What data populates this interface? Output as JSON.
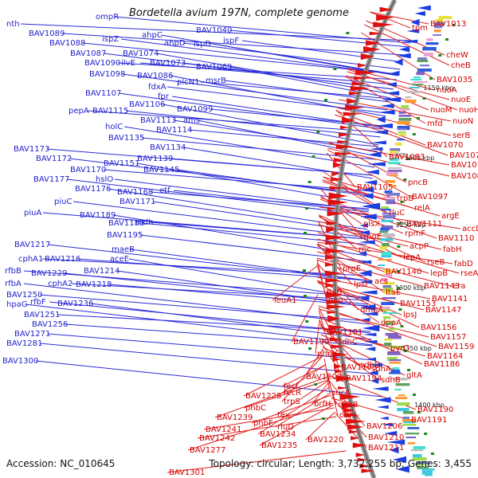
{
  "title": "Bordetella avium 197N, complete genome",
  "footer": {
    "accession": "Accession: NC_010645",
    "summary": "Topology: circular; Length: 3,732,255 bp; Genes: 3,455"
  },
  "kbp_marks": [
    "1150 kbp",
    "1200 kbp",
    "1250 kbp",
    "1300 kbp",
    "1350 kbp",
    "1400 kbp"
  ],
  "left_labels": [
    "nth",
    "BAV1089",
    "ompR",
    "BAV1088",
    "ispZ",
    "ahpC",
    "BAV1040",
    "ispF",
    "ahpD",
    "ispD",
    "BAV1087",
    "BAV1074",
    "BAV1090",
    "ilvE",
    "BAV1073",
    "BAV1069",
    "BAV1098",
    "BAV1086",
    "plcN1",
    "msrB",
    "fdxA",
    "fpr",
    "BAV1107",
    "BAV1106",
    "BAV1099",
    "pepA",
    "BAV1115",
    "BAV1113",
    "ams",
    "holC",
    "BAV1114",
    "BAV1135",
    "BAV1173",
    "BAV1134",
    "BAV1172",
    "BAV1151",
    "BAV1139",
    "BAV1170",
    "BAV1145",
    "hslO",
    "BAV1177",
    "BAV1176",
    "BAV1168",
    "etf",
    "piuA",
    "BAV1171",
    "piuC",
    "BAV1189",
    "mdh",
    "BAV1188",
    "BAV1195",
    "maeB",
    "BAV1217",
    "aceE",
    "cphA1",
    "BAV1216",
    "rfbB",
    "BAV1229",
    "BAV1214",
    "rfbA",
    "cphA2",
    "BAV1218",
    "BAV1250",
    "rfbF",
    "BAV1236",
    "hpaG",
    "BAV1251",
    "BAV1256",
    "BAV1271",
    "BAV1281",
    "BAV1300"
  ],
  "right_labels": [
    "BAV1013",
    "tpm",
    "cheW",
    "cheB",
    "BAV1035",
    "nuoA",
    "nuoE",
    "nuoM",
    "nuoH",
    "mfd",
    "nuoN",
    "serB",
    "BAV1070",
    "BAV1071",
    "BAV1083",
    "BAV1078",
    "BAV1082",
    "BAV1105",
    "pncB",
    "BAV1097",
    "trpB",
    "relA",
    "argE",
    "rluC",
    "BAV1111",
    "accD",
    "plsX",
    "rpmF",
    "BAV1110",
    "rpoE",
    "acpP",
    "fabH",
    "rnc",
    "lepA",
    "rseB",
    "fabD",
    "BAV1140",
    "lepB",
    "rseA",
    "prpE",
    "acs",
    "BAV1143",
    "era",
    "lpsI",
    "ltaE",
    "BAV1141",
    "ftsB",
    "leuA1",
    "eno",
    "dmpA",
    "BAV1153",
    "BAV1147",
    "lpsJ",
    "dppA",
    "BAV1156",
    "BAV1181",
    "BAV1157",
    "sdhC",
    "BAV1159",
    "BAV1199",
    "pyrG",
    "BAV1164",
    "phnX",
    "sdhD",
    "BAV1193",
    "sdhA",
    "BAV1202",
    "BAV1194",
    "sdhB",
    "BAV1186",
    "fecI",
    "fecR",
    "sucA",
    "gltA",
    "trpS",
    "brfH",
    "odhB",
    "BAV1190",
    "BAV1228",
    "odhL",
    "BAV1191",
    "phbC",
    "tex",
    "BAV1239",
    "BAV1206",
    "BAV1241",
    "phbF",
    "rluD",
    "BAV1210",
    "BAV1234",
    "BAV1242",
    "BAV1220",
    "BAV1211",
    "BAV1235",
    "BAV1277",
    "BAV1301"
  ]
}
